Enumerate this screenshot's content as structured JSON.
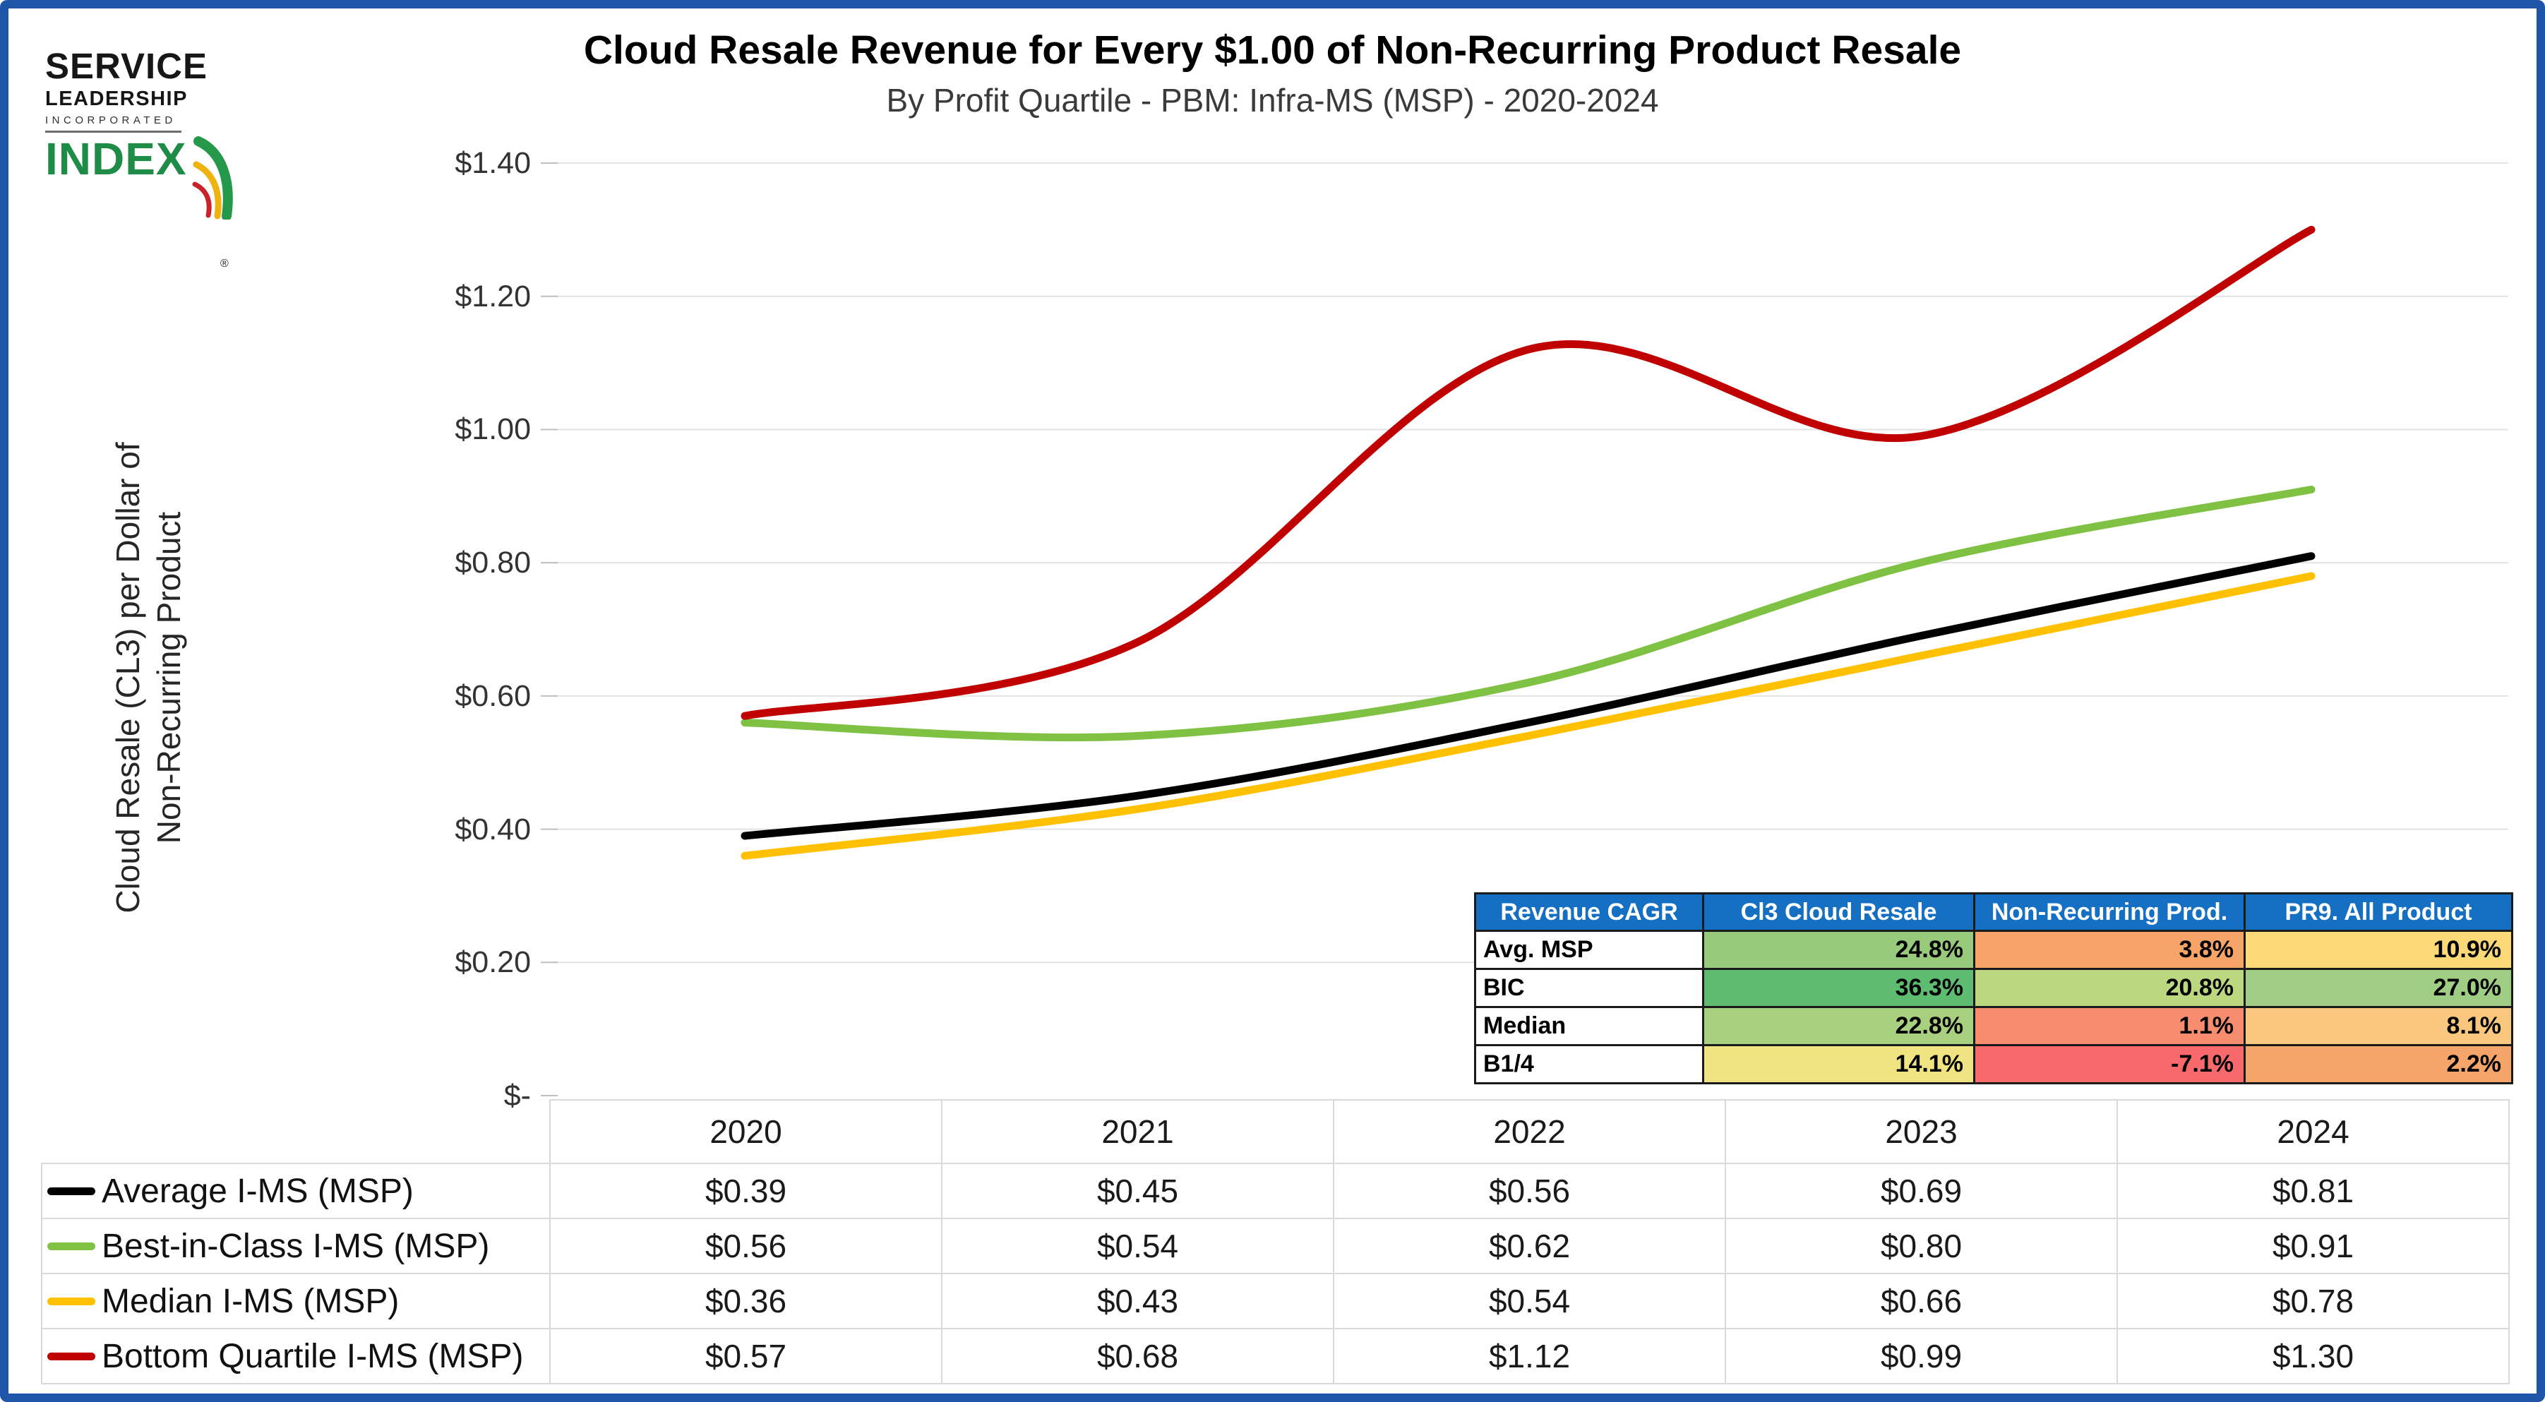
{
  "header": {
    "title": "Cloud Resale Revenue for Every $1.00 of Non-Recurring Product Resale",
    "subtitle": "By Profit Quartile - PBM: Infra-MS (MSP) - 2020-2024"
  },
  "logo": {
    "line1": "SERVICE",
    "line2": "LEADERSHIP",
    "line3": "INCORPORATED",
    "word": "INDEX",
    "registered_mark": "®",
    "index_green": "#1E8C46",
    "swoosh_green": "#26984A",
    "swoosh_yellow": "#EFB310",
    "swoosh_red": "#C8232C"
  },
  "colors": {
    "page_border_blue": "#1E55A8",
    "gridline": "#E2E2E2",
    "tick": "#BFBFBF",
    "table_border": "#D9D9D9",
    "cagr_border": "#1A1A1A",
    "cagr_header_bg": "#1570C4"
  },
  "chart_data": {
    "type": "line",
    "title": "Cloud Resale Revenue for Every $1.00 of Non-Recurring Product Resale",
    "subtitle": "By Profit Quartile - PBM: Infra-MS (MSP) - 2020-2024",
    "categories": [
      "2020",
      "2021",
      "2022",
      "2023",
      "2024"
    ],
    "series": [
      {
        "name": "Average I-MS (MSP)",
        "color": "#000000",
        "values": [
          0.39,
          0.45,
          0.56,
          0.69,
          0.81
        ]
      },
      {
        "name": "Best-in-Class I-MS (MSP)",
        "color": "#7EC143",
        "values": [
          0.56,
          0.54,
          0.62,
          0.8,
          0.91
        ]
      },
      {
        "name": "Median I-MS (MSP)",
        "color": "#FFC000",
        "values": [
          0.36,
          0.43,
          0.54,
          0.66,
          0.78
        ]
      },
      {
        "name": "Bottom Quartile I-MS (MSP)",
        "color": "#C00000",
        "values": [
          0.57,
          0.68,
          1.12,
          0.99,
          1.3
        ]
      }
    ],
    "xlabel": "",
    "ylabel": "Cloud Resale (CL3) per Dollar of\nNon-Recurring Product",
    "ylim": [
      0,
      1.4
    ],
    "ytick_step": 0.2,
    "y_ticks": [
      {
        "label": "$1.40",
        "value": 1.4
      },
      {
        "label": "$1.20",
        "value": 1.2
      },
      {
        "label": "$1.00",
        "value": 1.0
      },
      {
        "label": "$0.80",
        "value": 0.8
      },
      {
        "label": "$0.60",
        "value": 0.6
      },
      {
        "label": "$0.40",
        "value": 0.4
      },
      {
        "label": "$0.20",
        "value": 0.2
      },
      {
        "label": "$-",
        "value": 0.0
      }
    ],
    "grid": true,
    "smooth_lines": true,
    "legend_position": "data-table-below-chart"
  },
  "cagr_table": {
    "headers": [
      "Revenue CAGR",
      "Cl3 Cloud Resale",
      "Non-Recurring Prod.",
      "PR9. All Product"
    ],
    "rows": [
      {
        "label": "Avg. MSP",
        "cells": [
          {
            "text": "24.8%",
            "bg": "#98CA7C"
          },
          {
            "text": "3.8%",
            "bg": "#F7A469"
          },
          {
            "text": "10.9%",
            "bg": "#FBD976"
          }
        ]
      },
      {
        "label": "BIC",
        "cells": [
          {
            "text": "36.3%",
            "bg": "#5EBC70"
          },
          {
            "text": "20.8%",
            "bg": "#BBD881"
          },
          {
            "text": "27.0%",
            "bg": "#9ECD83"
          }
        ]
      },
      {
        "label": "Median",
        "cells": [
          {
            "text": "22.8%",
            "bg": "#A7D07F"
          },
          {
            "text": "1.1%",
            "bg": "#F68D6E"
          },
          {
            "text": "8.1%",
            "bg": "#F9C77E"
          }
        ]
      },
      {
        "label": "B1/4",
        "cells": [
          {
            "text": "14.1%",
            "bg": "#EFE382"
          },
          {
            "text": "-7.1%",
            "bg": "#F8696B"
          },
          {
            "text": "2.2%",
            "bg": "#F5A46A"
          }
        ]
      }
    ]
  },
  "bottom_table": {
    "years": [
      "2020",
      "2021",
      "2022",
      "2023",
      "2024"
    ],
    "rows": [
      {
        "label": "Average I-MS (MSP)",
        "color": "#000000",
        "values": [
          "$0.39",
          "$0.45",
          "$0.56",
          "$0.69",
          "$0.81"
        ]
      },
      {
        "label": "Best-in-Class I-MS (MSP)",
        "color": "#7EC143",
        "values": [
          "$0.56",
          "$0.54",
          "$0.62",
          "$0.80",
          "$0.91"
        ]
      },
      {
        "label": "Median I-MS (MSP)",
        "color": "#FFC000",
        "values": [
          "$0.36",
          "$0.43",
          "$0.54",
          "$0.66",
          "$0.78"
        ]
      },
      {
        "label": "Bottom Quartile I-MS (MSP)",
        "color": "#C00000",
        "values": [
          "$0.57",
          "$0.68",
          "$1.12",
          "$0.99",
          "$1.30"
        ]
      }
    ]
  }
}
